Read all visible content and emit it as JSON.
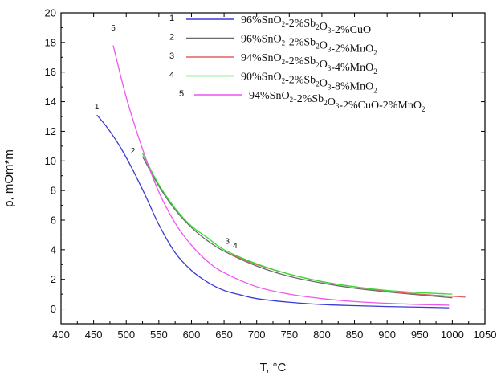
{
  "chart_data": {
    "type": "line",
    "xlabel": "T, °C",
    "ylabel": "p, mOm*m",
    "xlim": [
      400,
      1050
    ],
    "ylim": [
      -1,
      20
    ],
    "xticks": [
      400,
      450,
      500,
      550,
      600,
      650,
      700,
      750,
      800,
      850,
      900,
      950,
      1000,
      1050
    ],
    "yticks": [
      0,
      2,
      4,
      6,
      8,
      10,
      12,
      14,
      16,
      18,
      20
    ],
    "grid": false,
    "legend_position": "top-right",
    "series": [
      {
        "id": "1",
        "legend": {
          "parts": [
            [
              "96%SnO",
              false
            ],
            [
              "2",
              true
            ],
            [
              "-2%Sb",
              false
            ],
            [
              "2",
              true
            ],
            [
              "O",
              false
            ],
            [
              "3",
              true
            ],
            [
              "-2%CuO",
              false
            ]
          ]
        },
        "color": "#3b3bd6",
        "label_at": [
          455,
          13.5
        ],
        "x": [
          455,
          470,
          490,
          510,
          530,
          550,
          575,
          600,
          625,
          650,
          675,
          700,
          750,
          800,
          850,
          900,
          950,
          995
        ],
        "y": [
          13.1,
          12.3,
          11.0,
          9.4,
          7.6,
          5.7,
          3.8,
          2.6,
          1.8,
          1.25,
          0.95,
          0.7,
          0.45,
          0.3,
          0.22,
          0.16,
          0.12,
          0.08
        ]
      },
      {
        "id": "2",
        "legend": {
          "parts": [
            [
              "96%SnO",
              false
            ],
            [
              "2",
              true
            ],
            [
              "-2%Sb",
              false
            ],
            [
              "2",
              true
            ],
            [
              "O",
              false
            ],
            [
              "3",
              true
            ],
            [
              "-2%MnO",
              false
            ],
            [
              "2",
              true
            ]
          ]
        },
        "color": "#6a6a6a",
        "label_at": [
          510,
          10.5
        ],
        "x": [
          525,
          550,
          575,
          600,
          625,
          650,
          700,
          750,
          800,
          850,
          900,
          950,
          1000
        ],
        "y": [
          10.3,
          8.3,
          6.7,
          5.5,
          4.6,
          3.9,
          2.9,
          2.2,
          1.75,
          1.4,
          1.15,
          0.95,
          0.75
        ]
      },
      {
        "id": "3",
        "legend": {
          "parts": [
            [
              "94%SnO",
              false
            ],
            [
              "2",
              true
            ],
            [
              "-2%Sb",
              false
            ],
            [
              "2",
              true
            ],
            [
              "O",
              false
            ],
            [
              "3",
              true
            ],
            [
              "-4%MnO",
              false
            ],
            [
              "2",
              true
            ]
          ]
        },
        "color": "#e06060",
        "label_at": [
          655,
          4.4
        ],
        "x": [
          660,
          700,
          750,
          800,
          850,
          900,
          950,
          1000,
          1020
        ],
        "y": [
          3.7,
          3.0,
          2.35,
          1.85,
          1.5,
          1.2,
          1.0,
          0.85,
          0.8
        ]
      },
      {
        "id": "4",
        "legend": {
          "parts": [
            [
              "90%SnO",
              false
            ],
            [
              "2",
              true
            ],
            [
              "-2%Sb",
              false
            ],
            [
              "2",
              true
            ],
            [
              "O",
              false
            ],
            [
              "3",
              true
            ],
            [
              "-8%MnO",
              false
            ],
            [
              "2",
              true
            ]
          ]
        },
        "color": "#33dd33",
        "label_at": [
          667,
          4.1
        ],
        "x": [
          525,
          550,
          575,
          600,
          625,
          650,
          700,
          750,
          800,
          850,
          900,
          950,
          1000
        ],
        "y": [
          10.5,
          8.4,
          6.8,
          5.6,
          4.8,
          4.0,
          3.05,
          2.35,
          1.85,
          1.5,
          1.25,
          1.1,
          1.0
        ]
      },
      {
        "id": "5",
        "legend": {
          "parts": [
            [
              "94%SnO",
              false
            ],
            [
              "2",
              true
            ],
            [
              "-2%Sb",
              false
            ],
            [
              "2",
              true
            ],
            [
              "O",
              false
            ],
            [
              "3",
              true
            ],
            [
              "-2%CuO-2%MnO",
              false
            ],
            [
              "2",
              true
            ]
          ]
        },
        "color": "#ee55ee",
        "label_at": [
          480,
          18.8
        ],
        "x": [
          480,
          500,
          525,
          550,
          575,
          600,
          625,
          650,
          700,
          750,
          800,
          850,
          900,
          950,
          995
        ],
        "y": [
          17.8,
          14.3,
          10.8,
          7.9,
          5.8,
          4.3,
          3.2,
          2.45,
          1.5,
          1.0,
          0.7,
          0.5,
          0.38,
          0.3,
          0.25
        ]
      }
    ]
  }
}
